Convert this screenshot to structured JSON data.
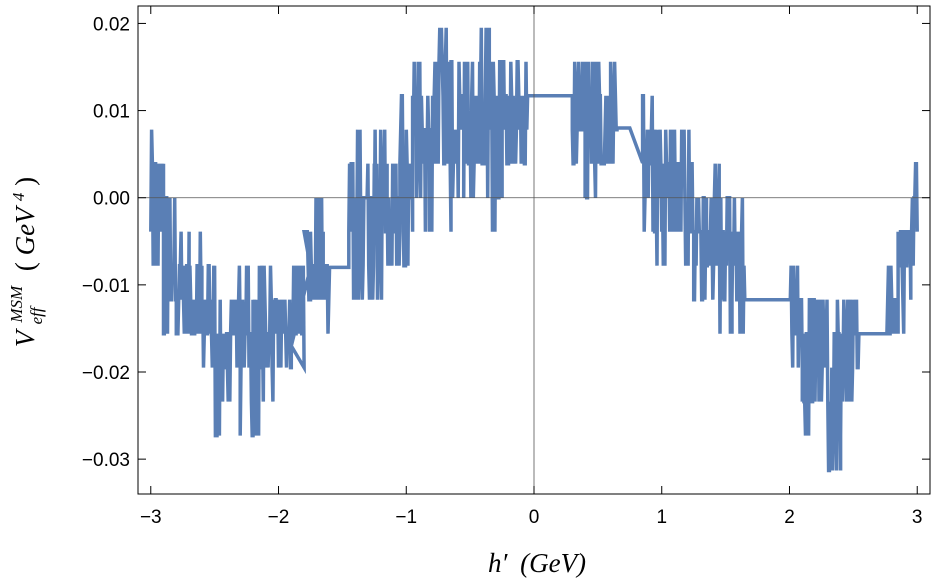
{
  "chart_data": {
    "type": "line",
    "xlabel": "h′ (GeV)",
    "ylabel": "V_eff^MSM (GeV^4)",
    "ylabel_parts": {
      "base": "V",
      "sup": "MSM",
      "sub": "eff",
      "unit_open": "(",
      "unit": "GeV",
      "unit_exp": "4",
      "unit_close": ")"
    },
    "xlabel_parts": {
      "var": "h′",
      "unit": "(GeV)"
    },
    "xlim": [
      -3.1,
      3.1
    ],
    "ylim": [
      -0.034,
      0.022
    ],
    "xticks": [
      -3,
      -2,
      -1,
      0,
      1,
      2,
      3
    ],
    "xtick_labels": [
      "−3",
      "−2",
      "−1",
      "0",
      "1",
      "2",
      "3"
    ],
    "yticks": [
      -0.03,
      -0.02,
      -0.01,
      0.0,
      0.01,
      0.02
    ],
    "ytick_labels": [
      "−0.03",
      "−0.02",
      "−0.01",
      "0.00",
      "0.01",
      "0.02"
    ],
    "grid": false,
    "reference_lines": {
      "x": 0,
      "y": 0
    },
    "color": "#5a7fb5",
    "series": [
      {
        "envelope_note_free": true,
        "segments": [
          {
            "x_range": [
              -3.0,
              -2.9
            ],
            "y_min": -0.008,
            "y_max": 0.008
          },
          {
            "x_range": [
              -2.9,
              -2.8
            ],
            "y_min": -0.015,
            "y_max": 0.004
          },
          {
            "x_range": [
              -2.8,
              -2.7
            ],
            "y_min": -0.019,
            "y_max": -0.004
          },
          {
            "x_range": [
              -2.7,
              -2.6
            ],
            "y_min": -0.019,
            "y_max": -0.004
          },
          {
            "x_range": [
              -2.6,
              -2.5
            ],
            "y_min": -0.021,
            "y_max": -0.008
          },
          {
            "x_range": [
              -2.5,
              -2.4
            ],
            "y_min": -0.027,
            "y_max": -0.008
          },
          {
            "x_range": [
              -2.4,
              -2.3
            ],
            "y_min": -0.023,
            "y_max": -0.008
          },
          {
            "x_range": [
              -2.3,
              -2.2
            ],
            "y_min": -0.027,
            "y_max": -0.008
          },
          {
            "x_range": [
              -2.2,
              -2.1
            ],
            "y_min": -0.027,
            "y_max": -0.008
          },
          {
            "x_range": [
              -2.1,
              -2.0
            ],
            "y_min": -0.023,
            "y_max": -0.008
          },
          {
            "x_range": [
              -2.0,
              -1.9
            ],
            "y_min": -0.019,
            "y_max": -0.012
          },
          {
            "x_range": [
              -1.9,
              -1.8
            ],
            "y_min": -0.019,
            "y_max": -0.008
          },
          {
            "x_range": [
              -1.8,
              -1.75
            ],
            "y_min": -0.012,
            "y_max": -0.004
          },
          {
            "x_range": [
              -1.75,
              -1.65
            ],
            "y_min": -0.012,
            "y_max": 0.0
          },
          {
            "x_range": [
              -1.65,
              -1.6
            ],
            "y_min": -0.015,
            "y_max": -0.004
          },
          {
            "x_range": [
              -1.45,
              -1.35
            ],
            "y_min": -0.012,
            "y_max": 0.008
          },
          {
            "x_range": [
              -1.35,
              -1.25
            ],
            "y_min": -0.012,
            "y_max": 0.004
          },
          {
            "x_range": [
              -1.25,
              -1.15
            ],
            "y_min": -0.012,
            "y_max": 0.008
          },
          {
            "x_range": [
              -1.15,
              -1.05
            ],
            "y_min": -0.008,
            "y_max": 0.008
          },
          {
            "x_range": [
              -1.05,
              -0.95
            ],
            "y_min": -0.008,
            "y_max": 0.012
          },
          {
            "x_range": [
              -0.95,
              -0.85
            ],
            "y_min": -0.004,
            "y_max": 0.016
          },
          {
            "x_range": [
              -0.85,
              -0.75
            ],
            "y_min": -0.004,
            "y_max": 0.016
          },
          {
            "x_range": [
              -0.75,
              -0.65
            ],
            "y_min": -0.004,
            "y_max": 0.019
          },
          {
            "x_range": [
              -0.65,
              -0.55
            ],
            "y_min": 0.0,
            "y_max": 0.016
          },
          {
            "x_range": [
              -0.55,
              -0.45
            ],
            "y_min": 0.0,
            "y_max": 0.016
          },
          {
            "x_range": [
              -0.45,
              -0.35
            ],
            "y_min": 0.0,
            "y_max": 0.019
          },
          {
            "x_range": [
              -0.35,
              -0.25
            ],
            "y_min": -0.002,
            "y_max": 0.016
          },
          {
            "x_range": [
              -0.25,
              -0.15
            ],
            "y_min": 0.0,
            "y_max": 0.016
          },
          {
            "x_range": [
              -0.15,
              -0.05
            ],
            "y_min": 0.004,
            "y_max": 0.016
          },
          {
            "x_range": [
              0.3,
              0.4
            ],
            "y_min": 0.004,
            "y_max": 0.016
          },
          {
            "x_range": [
              0.4,
              0.5
            ],
            "y_min": 0.0,
            "y_max": 0.016
          },
          {
            "x_range": [
              0.5,
              0.6
            ],
            "y_min": 0.0,
            "y_max": 0.016
          },
          {
            "x_range": [
              0.6,
              0.65
            ],
            "y_min": 0.004,
            "y_max": 0.015
          },
          {
            "x_range": [
              0.85,
              0.95
            ],
            "y_min": -0.004,
            "y_max": 0.012
          },
          {
            "x_range": [
              0.95,
              1.05
            ],
            "y_min": -0.008,
            "y_max": 0.012
          },
          {
            "x_range": [
              1.05,
              1.15
            ],
            "y_min": -0.008,
            "y_max": 0.008
          },
          {
            "x_range": [
              1.15,
              1.25
            ],
            "y_min": -0.008,
            "y_max": 0.008
          },
          {
            "x_range": [
              1.25,
              1.35
            ],
            "y_min": -0.012,
            "y_max": 0.004
          },
          {
            "x_range": [
              1.35,
              1.45
            ],
            "y_min": -0.012,
            "y_max": 0.004
          },
          {
            "x_range": [
              1.45,
              1.55
            ],
            "y_min": -0.015,
            "y_max": 0.0
          },
          {
            "x_range": [
              1.55,
              1.65
            ],
            "y_min": -0.015,
            "y_max": 0.0
          },
          {
            "x_range": [
              2.0,
              2.1
            ],
            "y_min": -0.019,
            "y_max": -0.008
          },
          {
            "x_range": [
              2.1,
              2.2
            ],
            "y_min": -0.027,
            "y_max": -0.012
          },
          {
            "x_range": [
              2.2,
              2.3
            ],
            "y_min": -0.023,
            "y_max": -0.012
          },
          {
            "x_range": [
              2.3,
              2.4
            ],
            "y_min": -0.031,
            "y_max": -0.012
          },
          {
            "x_range": [
              2.4,
              2.5
            ],
            "y_min": -0.027,
            "y_max": -0.012
          },
          {
            "x_range": [
              2.5,
              2.55
            ],
            "y_min": -0.019,
            "y_max": -0.012
          },
          {
            "x_range": [
              2.75,
              2.85
            ],
            "y_min": -0.015,
            "y_max": -0.008
          },
          {
            "x_range": [
              2.85,
              2.95
            ],
            "y_min": -0.015,
            "y_max": 0.0
          },
          {
            "x_range": [
              2.95,
              3.0
            ],
            "y_min": -0.008,
            "y_max": 0.004
          }
        ],
        "plateaus": [
          {
            "x": [
              -1.9,
              -1.75
            ],
            "y": [
              -0.017,
              -0.008
            ]
          },
          {
            "x": [
              -1.6,
              -1.45
            ],
            "y": [
              -0.008,
              -0.008
            ]
          },
          {
            "x": [
              0.05,
              0.3
            ],
            "y": [
              0.0117,
              0.0117
            ]
          },
          {
            "x": [
              0.65,
              0.75
            ],
            "y": [
              0.008,
              0.008
            ]
          },
          {
            "x": [
              0.75,
              0.85
            ],
            "y": [
              0.008,
              0.004
            ]
          },
          {
            "x": [
              1.65,
              2.0
            ],
            "y": [
              -0.0117,
              -0.0117
            ]
          },
          {
            "x": [
              2.55,
              2.75
            ],
            "y": [
              -0.0156,
              -0.0156
            ]
          }
        ]
      }
    ]
  }
}
